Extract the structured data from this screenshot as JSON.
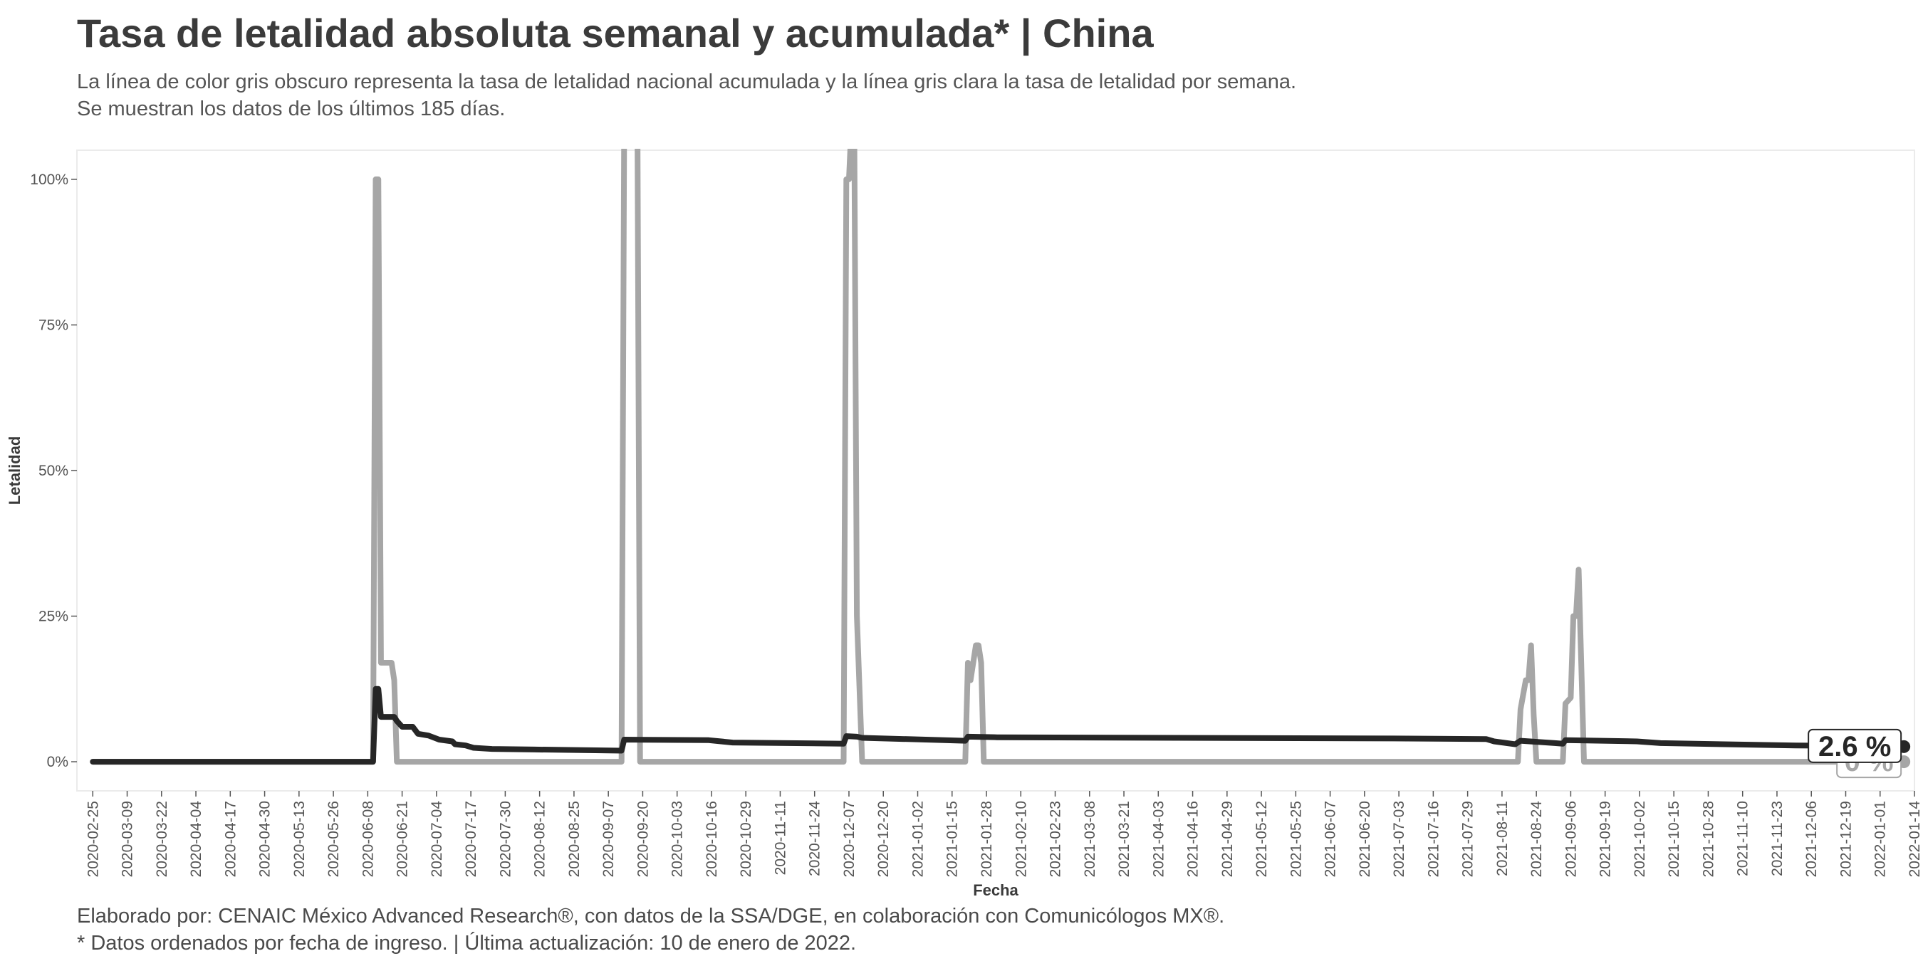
{
  "header": {
    "title": "Tasa de letalidad absoluta semanal y acumulada* | China",
    "subtitle_line1": "La línea de color gris obscuro representa la tasa de letalidad nacional acumulada y la línea gris clara la tasa de letalidad por semana.",
    "subtitle_line2": "Se muestran los datos de los últimos 185 días."
  },
  "footer": {
    "caption_line1": "Elaborado por: CENAIC México Advanced Research®, con datos de la SSA/DGE, en colaboración con Comunicólogos MX®.",
    "caption_line2": "* Datos ordenados por fecha de ingreso. | Última actualización: 10 de enero de 2022."
  },
  "colors": {
    "accumulated": "#262626",
    "weekly": "#a6a6a6",
    "panel_border": "#ebebeb"
  },
  "chart_data": {
    "type": "line",
    "xlabel": "Fecha",
    "ylabel": "Letalidad",
    "xlim": [
      "2020-02-19",
      "2022-01-14"
    ],
    "ylim": [
      -5,
      105
    ],
    "grid": false,
    "x_ticks": [
      "2020-02-25",
      "2020-03-09",
      "2020-03-22",
      "2020-04-04",
      "2020-04-17",
      "2020-04-30",
      "2020-05-13",
      "2020-05-26",
      "2020-06-08",
      "2020-06-21",
      "2020-07-04",
      "2020-07-17",
      "2020-07-30",
      "2020-08-12",
      "2020-08-25",
      "2020-09-07",
      "2020-09-20",
      "2020-10-03",
      "2020-10-16",
      "2020-10-29",
      "2020-11-11",
      "2020-11-24",
      "2020-12-07",
      "2020-12-20",
      "2021-01-02",
      "2021-01-15",
      "2021-01-28",
      "2021-02-10",
      "2021-02-23",
      "2021-03-08",
      "2021-03-21",
      "2021-04-03",
      "2021-04-16",
      "2021-04-29",
      "2021-05-12",
      "2021-05-25",
      "2021-06-07",
      "2021-06-20",
      "2021-07-03",
      "2021-07-16",
      "2021-07-29",
      "2021-08-11",
      "2021-08-24",
      "2021-09-06",
      "2021-09-19",
      "2021-10-02",
      "2021-10-15",
      "2021-10-28",
      "2021-11-10",
      "2021-11-23",
      "2021-12-06",
      "2021-12-19",
      "2022-01-01",
      "2022-01-14"
    ],
    "y_ticks": [
      {
        "value": 0,
        "label": "0%"
      },
      {
        "value": 25,
        "label": "25%"
      },
      {
        "value": 50,
        "label": "50%"
      },
      {
        "value": 75,
        "label": "75%"
      },
      {
        "value": 100,
        "label": "100%"
      }
    ],
    "series": [
      {
        "key": "weekly",
        "points": [
          [
            "2020-02-25",
            0
          ],
          [
            "2020-06-10",
            0
          ],
          [
            "2020-06-11",
            100
          ],
          [
            "2020-06-12",
            100
          ],
          [
            "2020-06-13",
            17
          ],
          [
            "2020-06-17",
            17
          ],
          [
            "2020-06-18",
            14
          ],
          [
            "2020-06-19",
            0
          ],
          [
            "2020-09-12",
            0
          ],
          [
            "2020-09-13",
            110
          ],
          [
            "2020-09-18",
            110
          ],
          [
            "2020-09-19",
            0
          ],
          [
            "2020-12-05",
            0
          ],
          [
            "2020-12-06",
            100
          ],
          [
            "2020-12-07",
            100
          ],
          [
            "2020-12-08",
            110
          ],
          [
            "2020-12-09",
            110
          ],
          [
            "2020-12-10",
            25
          ],
          [
            "2020-12-12",
            0
          ],
          [
            "2021-01-20",
            0
          ],
          [
            "2021-01-21",
            17
          ],
          [
            "2021-01-22",
            14
          ],
          [
            "2021-01-24",
            20
          ],
          [
            "2021-01-25",
            20
          ],
          [
            "2021-01-26",
            17
          ],
          [
            "2021-01-27",
            0
          ],
          [
            "2021-08-17",
            0
          ],
          [
            "2021-08-18",
            9
          ],
          [
            "2021-08-20",
            14
          ],
          [
            "2021-08-21",
            14
          ],
          [
            "2021-08-22",
            20
          ],
          [
            "2021-08-23",
            8
          ],
          [
            "2021-08-24",
            0
          ],
          [
            "2021-09-03",
            0
          ],
          [
            "2021-09-04",
            10
          ],
          [
            "2021-09-06",
            11
          ],
          [
            "2021-09-07",
            25
          ],
          [
            "2021-09-08",
            25
          ],
          [
            "2021-09-09",
            33
          ],
          [
            "2021-09-11",
            0
          ],
          [
            "2022-01-10",
            0
          ]
        ]
      },
      {
        "key": "accumulated",
        "points": [
          [
            "2020-02-25",
            0
          ],
          [
            "2020-06-10",
            0
          ],
          [
            "2020-06-11",
            12.5
          ],
          [
            "2020-06-12",
            12.5
          ],
          [
            "2020-06-13",
            7.7
          ],
          [
            "2020-06-18",
            7.7
          ],
          [
            "2020-06-19",
            7
          ],
          [
            "2020-06-21",
            6
          ],
          [
            "2020-06-25",
            6
          ],
          [
            "2020-06-27",
            4.8
          ],
          [
            "2020-07-01",
            4.5
          ],
          [
            "2020-07-05",
            3.8
          ],
          [
            "2020-07-10",
            3.5
          ],
          [
            "2020-07-11",
            3
          ],
          [
            "2020-07-15",
            2.8
          ],
          [
            "2020-07-18",
            2.4
          ],
          [
            "2020-07-25",
            2.2
          ],
          [
            "2020-08-10",
            2.1
          ],
          [
            "2020-09-12",
            1.9
          ],
          [
            "2020-09-13",
            3.8
          ],
          [
            "2020-10-15",
            3.7
          ],
          [
            "2020-10-24",
            3.3
          ],
          [
            "2020-12-05",
            3.1
          ],
          [
            "2020-12-06",
            4.4
          ],
          [
            "2020-12-10",
            4.3
          ],
          [
            "2020-12-12",
            4.1
          ],
          [
            "2021-01-20",
            3.6
          ],
          [
            "2021-01-21",
            4.3
          ],
          [
            "2021-02-01",
            4.2
          ],
          [
            "2021-07-01",
            4.0
          ],
          [
            "2021-08-05",
            3.9
          ],
          [
            "2021-08-08",
            3.5
          ],
          [
            "2021-08-16",
            3.0
          ],
          [
            "2021-08-18",
            3.6
          ],
          [
            "2021-08-31",
            3.2
          ],
          [
            "2021-09-03",
            3.1
          ],
          [
            "2021-09-04",
            3.7
          ],
          [
            "2021-10-01",
            3.5
          ],
          [
            "2021-10-10",
            3.2
          ],
          [
            "2021-11-30",
            2.8
          ],
          [
            "2022-01-10",
            2.6
          ]
        ]
      }
    ],
    "end_labels": [
      {
        "key": "accumulated",
        "date": "2022-01-10",
        "value": 2.6,
        "text": "2.6 %"
      },
      {
        "key": "weekly",
        "date": "2022-01-10",
        "value": 0,
        "text": "0 %"
      }
    ]
  }
}
